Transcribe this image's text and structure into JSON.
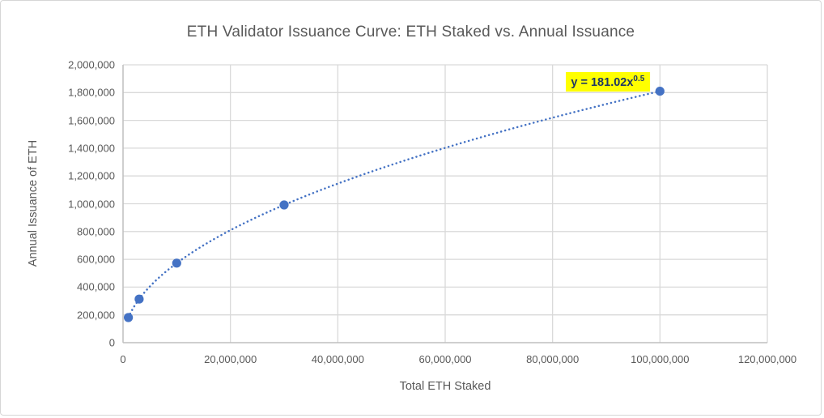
{
  "chart_data": {
    "type": "scatter",
    "title": "ETH Validator Issuance Curve: ETH Staked vs. Annual Issuance",
    "xlabel": "Total ETH Staked",
    "ylabel": "Annual Issuance of ETH",
    "xlim": [
      0,
      120000000
    ],
    "ylim": [
      0,
      2000000
    ],
    "grid": true,
    "x_ticks": [
      0,
      20000000,
      40000000,
      60000000,
      80000000,
      100000000,
      120000000
    ],
    "x_tick_labels": [
      "0",
      "20,000,000",
      "40,000,000",
      "60,000,000",
      "80,000,000",
      "100,000,000",
      "120,000,000"
    ],
    "y_ticks": [
      0,
      200000,
      400000,
      600000,
      800000,
      1000000,
      1200000,
      1400000,
      1600000,
      1800000,
      2000000
    ],
    "y_tick_labels": [
      "0",
      "200,000",
      "400,000",
      "600,000",
      "800,000",
      "1,000,000",
      "1,200,000",
      "1,400,000",
      "1,600,000",
      "1,800,000",
      "2,000,000"
    ],
    "points": {
      "x": [
        1000000,
        3000000,
        10000000,
        30000000,
        100000000
      ],
      "y": [
        181020,
        313537,
        572436,
        991488,
        1810200
      ]
    },
    "trendline": {
      "type": "power",
      "coefficient": 181.02,
      "exponent": 0.5,
      "equation_base": "y = 181.02x",
      "equation_exponent": "0.5",
      "style": "dotted"
    },
    "colors": {
      "series": "#4472C4",
      "gridline": "#D9D9D9",
      "axis_line": "#BFBFBF",
      "text": "#595959",
      "equation_text": "#1F3864",
      "equation_highlight": "#FFFF00"
    }
  }
}
